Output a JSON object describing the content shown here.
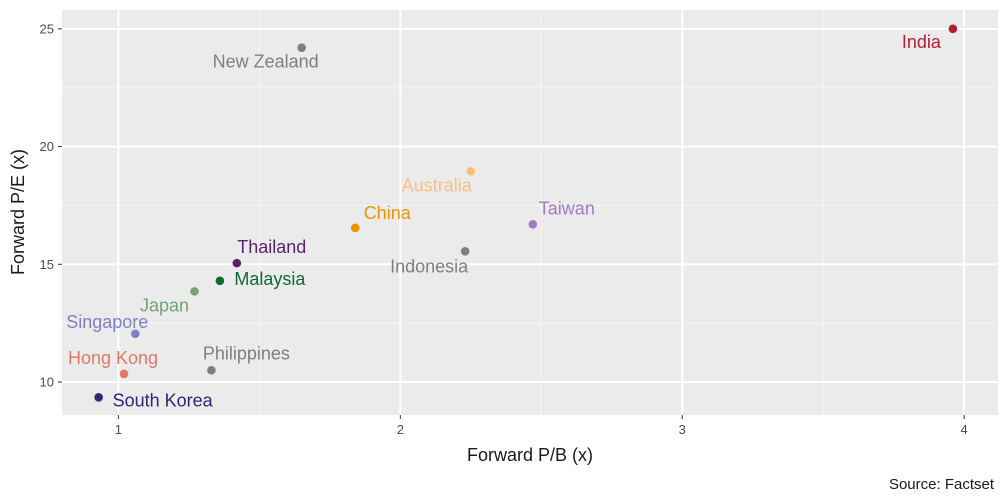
{
  "chart_data": {
    "type": "scatter",
    "title": "",
    "xlabel": "Forward P/B (x)",
    "ylabel": "Forward P/E (x)",
    "xlim": [
      0.8,
      4.12
    ],
    "ylim": [
      8.6,
      25.8
    ],
    "x_ticks": [
      1,
      2,
      3,
      4
    ],
    "y_ticks": [
      10,
      15,
      20,
      25
    ],
    "grid": true,
    "legend": "none",
    "source": "Source: Factset",
    "points": [
      {
        "name": "India",
        "x": 3.96,
        "y": 25.0,
        "color": "#b21f2e"
      },
      {
        "name": "New Zealand",
        "x": 1.65,
        "y": 24.2,
        "color": "#7f7f7f"
      },
      {
        "name": "Australia",
        "x": 2.25,
        "y": 18.95,
        "color": "#f9c07d"
      },
      {
        "name": "Taiwan",
        "x": 2.47,
        "y": 16.7,
        "color": "#a07cc0"
      },
      {
        "name": "China",
        "x": 1.84,
        "y": 16.55,
        "color": "#e9920c"
      },
      {
        "name": "Indonesia",
        "x": 2.23,
        "y": 15.55,
        "color": "#7f7f7f"
      },
      {
        "name": "Thailand",
        "x": 1.42,
        "y": 15.05,
        "color": "#5a1f74"
      },
      {
        "name": "Malaysia",
        "x": 1.36,
        "y": 14.3,
        "color": "#0d6b36"
      },
      {
        "name": "Japan",
        "x": 1.27,
        "y": 13.85,
        "color": "#72a27a"
      },
      {
        "name": "Singapore",
        "x": 1.06,
        "y": 12.05,
        "color": "#7f7fc4"
      },
      {
        "name": "Philippines",
        "x": 1.33,
        "y": 10.5,
        "color": "#7f7f7f"
      },
      {
        "name": "Hong Kong",
        "x": 1.02,
        "y": 10.35,
        "color": "#e07868"
      },
      {
        "name": "South Korea",
        "x": 0.93,
        "y": 9.35,
        "color": "#262a78"
      }
    ]
  }
}
